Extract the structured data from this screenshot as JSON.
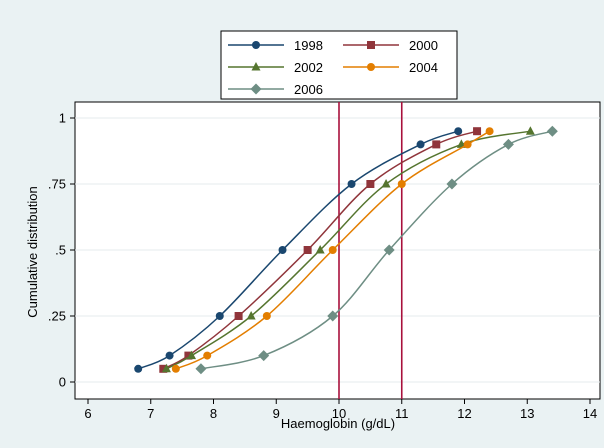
{
  "chart_data": {
    "type": "line",
    "xlabel": "Haemoglobin (g/dL)",
    "ylabel": "Cumulative distribution",
    "xlim": [
      6,
      14
    ],
    "ylim": [
      0,
      1
    ],
    "xticks": [
      "6",
      "7",
      "8",
      "9",
      "10",
      "11",
      "12",
      "13",
      "14"
    ],
    "yticks": [
      "0",
      ".25",
      ".5",
      ".75",
      "1"
    ],
    "grid": "horizontal",
    "legend_position": "top",
    "reference_lines_x": [
      10,
      11
    ],
    "reference_line_color": "#a8103c",
    "series": [
      {
        "name": "1998",
        "color": "#1a476f",
        "marker": "circle",
        "x": [
          6.8,
          7.3,
          8.1,
          9.1,
          10.2,
          11.3,
          11.9
        ],
        "y": [
          0.05,
          0.1,
          0.25,
          0.5,
          0.75,
          0.9,
          0.95
        ]
      },
      {
        "name": "2000",
        "color": "#90353b",
        "marker": "square",
        "x": [
          7.2,
          7.6,
          8.4,
          9.5,
          10.5,
          11.55,
          12.2
        ],
        "y": [
          0.05,
          0.1,
          0.25,
          0.5,
          0.75,
          0.9,
          0.95
        ]
      },
      {
        "name": "2002",
        "color": "#55752f",
        "marker": "triangle",
        "x": [
          7.25,
          7.65,
          8.6,
          9.7,
          10.75,
          11.95,
          13.05
        ],
        "y": [
          0.05,
          0.1,
          0.25,
          0.5,
          0.75,
          0.9,
          0.95
        ]
      },
      {
        "name": "2004",
        "color": "#e37e00",
        "marker": "circle",
        "x": [
          7.4,
          7.9,
          8.85,
          9.9,
          11.0,
          12.05,
          12.4
        ],
        "y": [
          0.05,
          0.1,
          0.25,
          0.5,
          0.75,
          0.9,
          0.95
        ]
      },
      {
        "name": "2006",
        "color": "#6e8e84",
        "marker": "diamond",
        "x": [
          7.8,
          8.8,
          9.9,
          10.8,
          11.8,
          12.7,
          13.4
        ],
        "y": [
          0.05,
          0.1,
          0.25,
          0.5,
          0.75,
          0.9,
          0.95
        ]
      }
    ]
  }
}
